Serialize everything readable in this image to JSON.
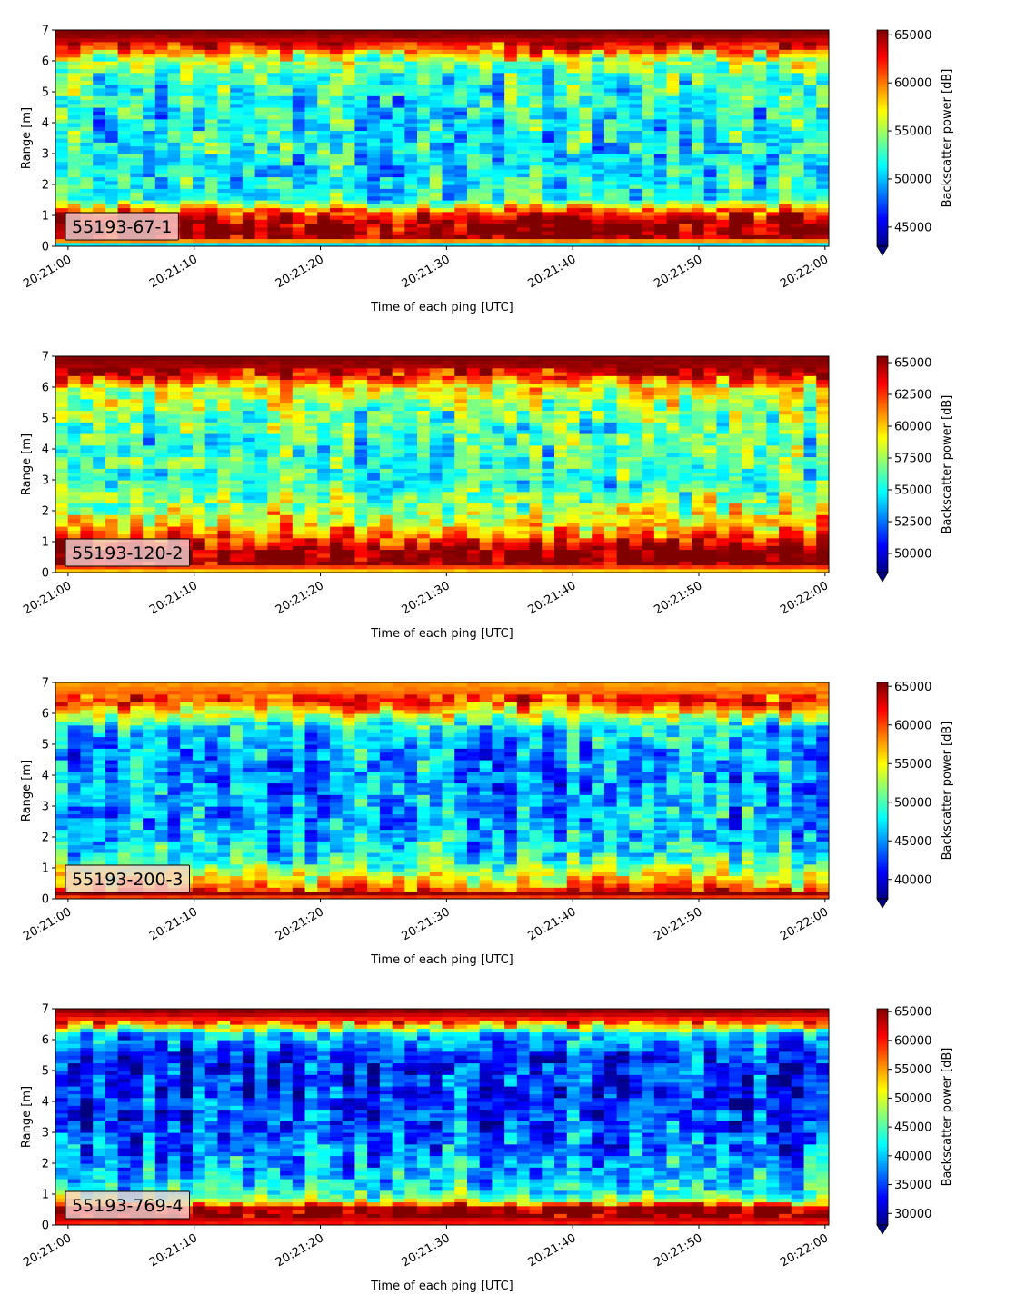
{
  "chart_data": [
    {
      "type": "heatmap",
      "panel_label": "55193-67-1",
      "xlabel": "Time of each ping [UTC]",
      "ylabel": "Range [m]",
      "x_ticks": [
        "20:21:00",
        "20:21:10",
        "20:21:20",
        "20:21:30",
        "20:21:40",
        "20:21:50",
        "20:22:00"
      ],
      "xlim_seconds": [
        -1,
        60.3
      ],
      "ylim": [
        0,
        7
      ],
      "y_ticks": [
        0,
        1,
        2,
        3,
        4,
        5,
        6,
        7
      ],
      "colorbar_label": "Backscatter power [dB]",
      "colorbar_ticks": [
        45000,
        50000,
        55000,
        60000,
        65000
      ],
      "clim": [
        43000,
        65500
      ],
      "colormap": "jet",
      "colorbar_extend": "min",
      "grid": false,
      "profile": [
        {
          "range": 0.1,
          "value": 51000
        },
        {
          "range": 0.25,
          "value": 65500
        },
        {
          "range": 0.6,
          "value": 65500
        },
        {
          "range": 0.85,
          "value": 64500
        },
        {
          "range": 1.1,
          "value": 61500
        },
        {
          "range": 1.5,
          "value": 52000
        },
        {
          "range": 2.5,
          "value": 51000
        },
        {
          "range": 3.5,
          "value": 51500
        },
        {
          "range": 4.5,
          "value": 52000
        },
        {
          "range": 5.5,
          "value": 52500
        },
        {
          "range": 6.1,
          "value": 56000
        },
        {
          "range": 6.5,
          "value": 63000
        },
        {
          "range": 6.9,
          "value": 65500
        }
      ]
    },
    {
      "type": "heatmap",
      "panel_label": "55193-120-2",
      "xlabel": "Time of each ping [UTC]",
      "ylabel": "Range [m]",
      "x_ticks": [
        "20:21:00",
        "20:21:10",
        "20:21:20",
        "20:21:30",
        "20:21:40",
        "20:21:50",
        "20:22:00"
      ],
      "xlim_seconds": [
        -1,
        60.3
      ],
      "ylim": [
        0,
        7
      ],
      "y_ticks": [
        0,
        1,
        2,
        3,
        4,
        5,
        6,
        7
      ],
      "colorbar_label": "Backscatter power [dB]",
      "colorbar_ticks": [
        50000,
        52500,
        55000,
        57500,
        60000,
        62500,
        65000
      ],
      "clim": [
        48500,
        65500
      ],
      "colormap": "jet",
      "colorbar_extend": "min",
      "grid": false,
      "profile": [
        {
          "range": 0.1,
          "value": 60000
        },
        {
          "range": 0.3,
          "value": 65500
        },
        {
          "range": 0.7,
          "value": 65500
        },
        {
          "range": 1.0,
          "value": 63000
        },
        {
          "range": 1.5,
          "value": 60000
        },
        {
          "range": 2.0,
          "value": 58000
        },
        {
          "range": 3.0,
          "value": 55500
        },
        {
          "range": 4.0,
          "value": 56000
        },
        {
          "range": 5.0,
          "value": 56500
        },
        {
          "range": 6.0,
          "value": 59000
        },
        {
          "range": 6.5,
          "value": 64500
        },
        {
          "range": 6.9,
          "value": 65500
        }
      ]
    },
    {
      "type": "heatmap",
      "panel_label": "55193-200-3",
      "xlabel": "Time of each ping [UTC]",
      "ylabel": "Range [m]",
      "x_ticks": [
        "20:21:00",
        "20:21:10",
        "20:21:20",
        "20:21:30",
        "20:21:40",
        "20:21:50",
        "20:22:00"
      ],
      "xlim_seconds": [
        -1,
        60.3
      ],
      "ylim": [
        0,
        7
      ],
      "y_ticks": [
        0,
        1,
        2,
        3,
        4,
        5,
        6,
        7
      ],
      "colorbar_label": "Backscatter power [dB]",
      "colorbar_ticks": [
        40000,
        45000,
        50000,
        55000,
        60000,
        65000
      ],
      "clim": [
        37500,
        65500
      ],
      "colormap": "jet",
      "colorbar_extend": "min",
      "grid": false,
      "profile": [
        {
          "range": 0.05,
          "value": 60000
        },
        {
          "range": 0.2,
          "value": 65500
        },
        {
          "range": 0.35,
          "value": 58000
        },
        {
          "range": 0.7,
          "value": 55000
        },
        {
          "range": 1.0,
          "value": 51000
        },
        {
          "range": 1.5,
          "value": 47500
        },
        {
          "range": 2.5,
          "value": 45500
        },
        {
          "range": 3.5,
          "value": 45000
        },
        {
          "range": 4.5,
          "value": 45000
        },
        {
          "range": 5.5,
          "value": 46500
        },
        {
          "range": 6.0,
          "value": 54000
        },
        {
          "range": 6.4,
          "value": 61000
        },
        {
          "range": 6.9,
          "value": 58000
        }
      ]
    },
    {
      "type": "heatmap",
      "panel_label": "55193-769-4",
      "xlabel": "Time of each ping [UTC]",
      "ylabel": "Range [m]",
      "x_ticks": [
        "20:21:00",
        "20:21:10",
        "20:21:20",
        "20:21:30",
        "20:21:40",
        "20:21:50",
        "20:22:00"
      ],
      "xlim_seconds": [
        -1,
        60.3
      ],
      "ylim": [
        0,
        7
      ],
      "y_ticks": [
        0,
        1,
        2,
        3,
        4,
        5,
        6,
        7
      ],
      "colorbar_label": "Backscatter power [dB]",
      "colorbar_ticks": [
        30000,
        35000,
        40000,
        45000,
        50000,
        55000,
        60000,
        65000
      ],
      "clim": [
        28000,
        65500
      ],
      "colormap": "jet",
      "colorbar_extend": "min",
      "grid": false,
      "profile": [
        {
          "range": 0.1,
          "value": 60000
        },
        {
          "range": 0.3,
          "value": 65500
        },
        {
          "range": 0.6,
          "value": 65500
        },
        {
          "range": 0.75,
          "value": 50000
        },
        {
          "range": 1.0,
          "value": 44000
        },
        {
          "range": 1.5,
          "value": 40000
        },
        {
          "range": 2.5,
          "value": 37000
        },
        {
          "range": 3.5,
          "value": 35000
        },
        {
          "range": 4.5,
          "value": 34000
        },
        {
          "range": 5.5,
          "value": 34500
        },
        {
          "range": 6.2,
          "value": 40000
        },
        {
          "range": 6.5,
          "value": 55000
        },
        {
          "range": 6.9,
          "value": 65000
        }
      ]
    }
  ]
}
